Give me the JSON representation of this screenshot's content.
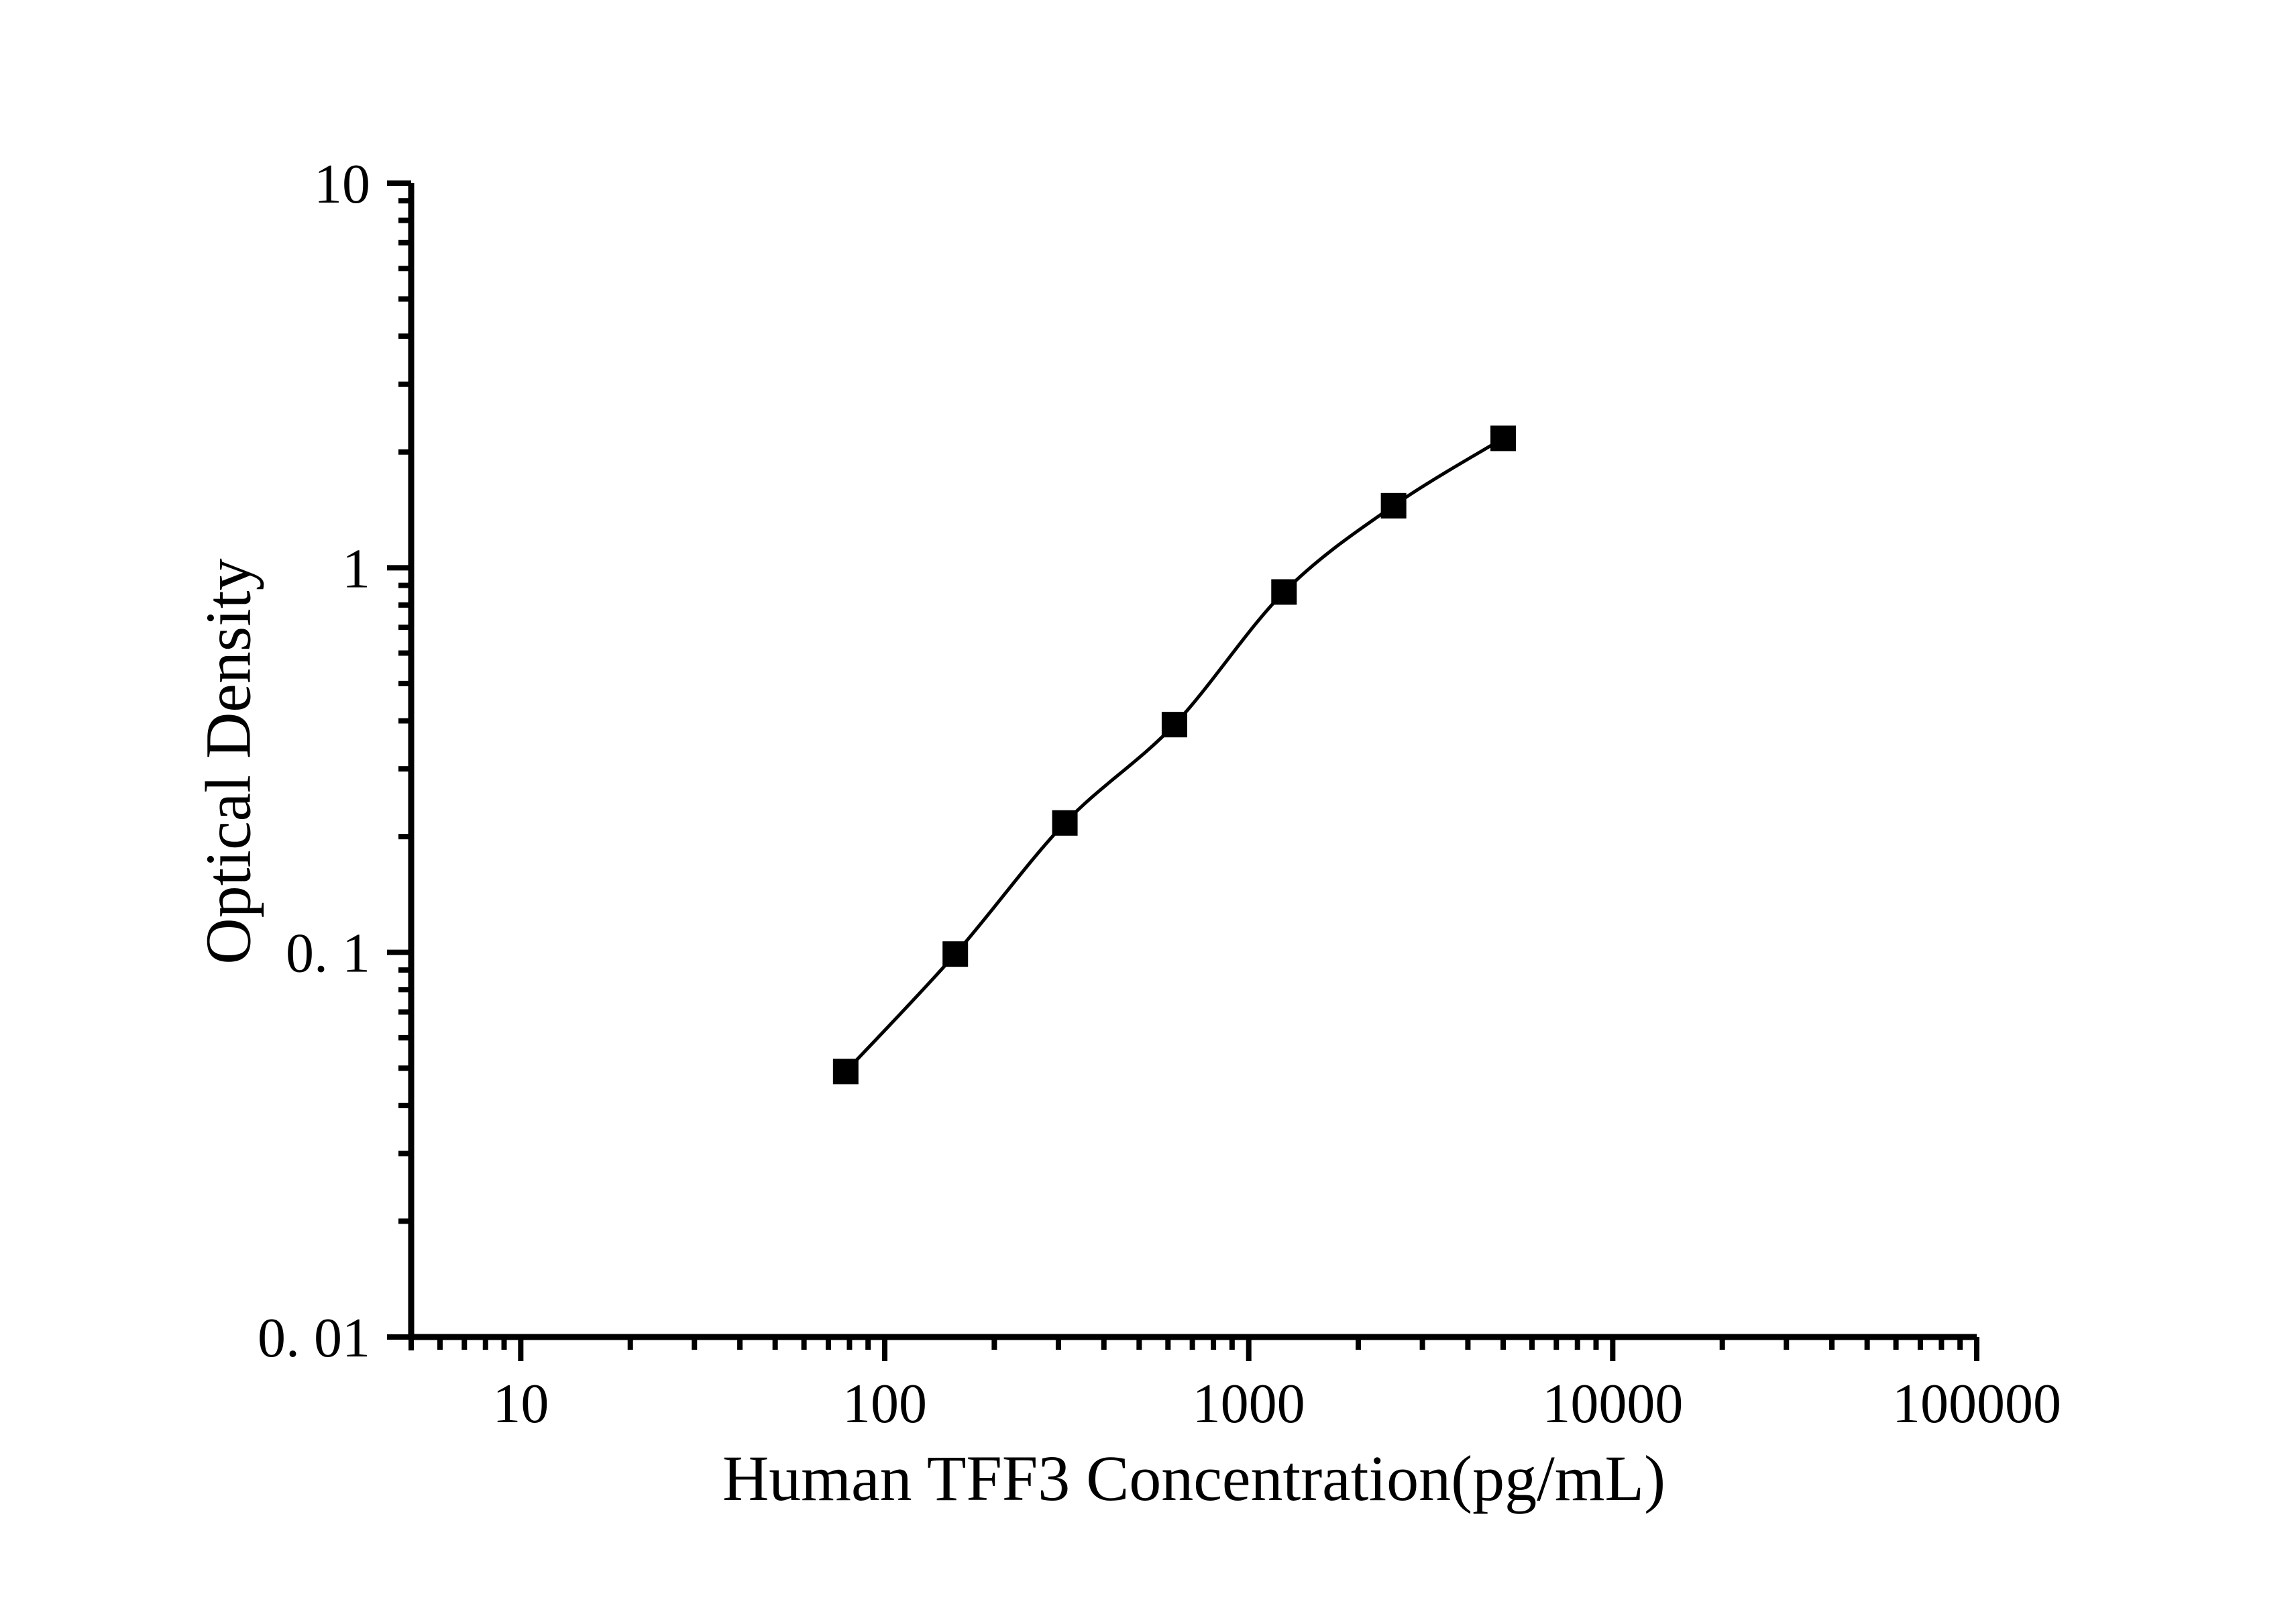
{
  "figure": {
    "background_color": "#ffffff",
    "ink_color": "#000000"
  },
  "chart_data": {
    "type": "line",
    "title": "",
    "xlabel": "Human TFF3 Concentration(pg/mL)",
    "ylabel": "Optical Density",
    "x_scale": "log",
    "y_scale": "log",
    "xlim": [
      5,
      100000
    ],
    "ylim": [
      0.01,
      10
    ],
    "grid": "off",
    "legend": "none",
    "x_major_ticks": [
      {
        "value": 10,
        "label": "10"
      },
      {
        "value": 100,
        "label": "100"
      },
      {
        "value": 1000,
        "label": "1000"
      },
      {
        "value": 10000,
        "label": "10000"
      },
      {
        "value": 100000,
        "label": "100000"
      }
    ],
    "y_major_ticks": [
      {
        "value": 10,
        "label": "10"
      },
      {
        "value": 1,
        "label": "1"
      },
      {
        "value": 0.1,
        "label": "0. 1"
      },
      {
        "value": 0.01,
        "label": "0. 01"
      }
    ],
    "series": [
      {
        "name": "standard-curve",
        "marker": "filled-square",
        "line": "smooth",
        "color": "#000000",
        "points": [
          {
            "x": 78.125,
            "y": 0.049
          },
          {
            "x": 156.25,
            "y": 0.099
          },
          {
            "x": 312.5,
            "y": 0.217
          },
          {
            "x": 625,
            "y": 0.391
          },
          {
            "x": 1250,
            "y": 0.865
          },
          {
            "x": 2500,
            "y": 1.45
          },
          {
            "x": 5000,
            "y": 2.17
          }
        ]
      }
    ]
  }
}
